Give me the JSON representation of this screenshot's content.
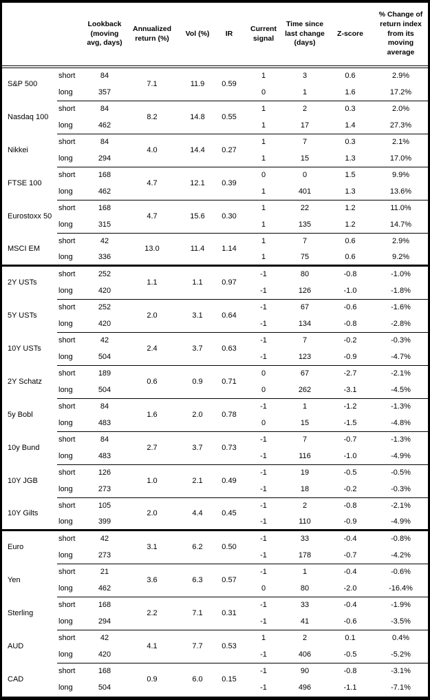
{
  "table": {
    "column_headers": {
      "asset": "",
      "side": "",
      "lookback": "Lookback (moving avg, days)",
      "annualized_return": "Annualized return (%)",
      "vol": "Vol (%)",
      "ir": "IR",
      "current_signal": "Current signal",
      "time_since": "Time since last change (days)",
      "z_score": "Z-score",
      "pct_change": "% Change of return index from its moving average"
    },
    "side_labels": [
      "short",
      "long"
    ],
    "sections": [
      {
        "assets": [
          {
            "name": "S&P 500",
            "annualized_return": "7.1",
            "vol": "11.9",
            "ir": "0.59",
            "rows": [
              {
                "side": "short",
                "lookback": "84",
                "signal": "1",
                "time_since": "3",
                "z_score": "0.6",
                "pct_change": "2.9%"
              },
              {
                "side": "long",
                "lookback": "357",
                "signal": "0",
                "time_since": "1",
                "z_score": "1.6",
                "pct_change": "17.2%"
              }
            ]
          },
          {
            "name": "Nasdaq 100",
            "annualized_return": "8.2",
            "vol": "14.8",
            "ir": "0.55",
            "rows": [
              {
                "side": "short",
                "lookback": "84",
                "signal": "1",
                "time_since": "2",
                "z_score": "0.3",
                "pct_change": "2.0%"
              },
              {
                "side": "long",
                "lookback": "462",
                "signal": "1",
                "time_since": "17",
                "z_score": "1.4",
                "pct_change": "27.3%"
              }
            ]
          },
          {
            "name": "Nikkei",
            "annualized_return": "4.0",
            "vol": "14.4",
            "ir": "0.27",
            "rows": [
              {
                "side": "short",
                "lookback": "84",
                "signal": "1",
                "time_since": "7",
                "z_score": "0.3",
                "pct_change": "2.1%"
              },
              {
                "side": "long",
                "lookback": "294",
                "signal": "1",
                "time_since": "15",
                "z_score": "1.3",
                "pct_change": "17.0%"
              }
            ]
          },
          {
            "name": "FTSE 100",
            "annualized_return": "4.7",
            "vol": "12.1",
            "ir": "0.39",
            "rows": [
              {
                "side": "short",
                "lookback": "168",
                "signal": "0",
                "time_since": "0",
                "z_score": "1.5",
                "pct_change": "9.9%"
              },
              {
                "side": "long",
                "lookback": "462",
                "signal": "1",
                "time_since": "401",
                "z_score": "1.3",
                "pct_change": "13.6%"
              }
            ]
          },
          {
            "name": "Eurostoxx 50",
            "annualized_return": "4.7",
            "vol": "15.6",
            "ir": "0.30",
            "rows": [
              {
                "side": "short",
                "lookback": "168",
                "signal": "1",
                "time_since": "22",
                "z_score": "1.2",
                "pct_change": "11.0%"
              },
              {
                "side": "long",
                "lookback": "315",
                "signal": "1",
                "time_since": "135",
                "z_score": "1.2",
                "pct_change": "14.7%"
              }
            ]
          },
          {
            "name": "MSCI EM",
            "annualized_return": "13.0",
            "vol": "11.4",
            "ir": "1.14",
            "rows": [
              {
                "side": "short",
                "lookback": "42",
                "signal": "1",
                "time_since": "7",
                "z_score": "0.6",
                "pct_change": "2.9%"
              },
              {
                "side": "long",
                "lookback": "336",
                "signal": "1",
                "time_since": "75",
                "z_score": "0.6",
                "pct_change": "9.2%"
              }
            ]
          }
        ]
      },
      {
        "assets": [
          {
            "name": "2Y USTs",
            "annualized_return": "1.1",
            "vol": "1.1",
            "ir": "0.97",
            "rows": [
              {
                "side": "short",
                "lookback": "252",
                "signal": "-1",
                "time_since": "80",
                "z_score": "-0.8",
                "pct_change": "-1.0%"
              },
              {
                "side": "long",
                "lookback": "420",
                "signal": "-1",
                "time_since": "126",
                "z_score": "-1.0",
                "pct_change": "-1.8%"
              }
            ]
          },
          {
            "name": "5Y USTs",
            "annualized_return": "2.0",
            "vol": "3.1",
            "ir": "0.64",
            "rows": [
              {
                "side": "short",
                "lookback": "252",
                "signal": "-1",
                "time_since": "67",
                "z_score": "-0.6",
                "pct_change": "-1.6%"
              },
              {
                "side": "long",
                "lookback": "420",
                "signal": "-1",
                "time_since": "134",
                "z_score": "-0.8",
                "pct_change": "-2.8%"
              }
            ]
          },
          {
            "name": "10Y USTs",
            "annualized_return": "2.4",
            "vol": "3.7",
            "ir": "0.63",
            "rows": [
              {
                "side": "short",
                "lookback": "42",
                "signal": "-1",
                "time_since": "7",
                "z_score": "-0.2",
                "pct_change": "-0.3%"
              },
              {
                "side": "long",
                "lookback": "504",
                "signal": "-1",
                "time_since": "123",
                "z_score": "-0.9",
                "pct_change": "-4.7%"
              }
            ]
          },
          {
            "name": "2Y Schatz",
            "annualized_return": "0.6",
            "vol": "0.9",
            "ir": "0.71",
            "rows": [
              {
                "side": "short",
                "lookback": "189",
                "signal": "0",
                "time_since": "67",
                "z_score": "-2.7",
                "pct_change": "-2.1%"
              },
              {
                "side": "long",
                "lookback": "504",
                "signal": "0",
                "time_since": "262",
                "z_score": "-3.1",
                "pct_change": "-4.5%"
              }
            ]
          },
          {
            "name": "5y Bobl",
            "annualized_return": "1.6",
            "vol": "2.0",
            "ir": "0.78",
            "rows": [
              {
                "side": "short",
                "lookback": "84",
                "signal": "-1",
                "time_since": "1",
                "z_score": "-1.2",
                "pct_change": "-1.3%"
              },
              {
                "side": "long",
                "lookback": "483",
                "signal": "0",
                "time_since": "15",
                "z_score": "-1.5",
                "pct_change": "-4.8%"
              }
            ]
          },
          {
            "name": "10y Bund",
            "annualized_return": "2.7",
            "vol": "3.7",
            "ir": "0.73",
            "rows": [
              {
                "side": "short",
                "lookback": "84",
                "signal": "-1",
                "time_since": "7",
                "z_score": "-0.7",
                "pct_change": "-1.3%"
              },
              {
                "side": "long",
                "lookback": "483",
                "signal": "-1",
                "time_since": "116",
                "z_score": "-1.0",
                "pct_change": "-4.9%"
              }
            ]
          },
          {
            "name": "10Y JGB",
            "annualized_return": "1.0",
            "vol": "2.1",
            "ir": "0.49",
            "rows": [
              {
                "side": "short",
                "lookback": "126",
                "signal": "-1",
                "time_since": "19",
                "z_score": "-0.5",
                "pct_change": "-0.5%"
              },
              {
                "side": "long",
                "lookback": "273",
                "signal": "-1",
                "time_since": "18",
                "z_score": "-0.2",
                "pct_change": "-0.3%"
              }
            ]
          },
          {
            "name": "10Y Gilts",
            "annualized_return": "2.0",
            "vol": "4.4",
            "ir": "0.45",
            "rows": [
              {
                "side": "short",
                "lookback": "105",
                "signal": "-1",
                "time_since": "2",
                "z_score": "-0.8",
                "pct_change": "-2.1%"
              },
              {
                "side": "long",
                "lookback": "399",
                "signal": "-1",
                "time_since": "110",
                "z_score": "-0.9",
                "pct_change": "-4.9%"
              }
            ]
          }
        ]
      },
      {
        "assets": [
          {
            "name": "Euro",
            "annualized_return": "3.1",
            "vol": "6.2",
            "ir": "0.50",
            "rows": [
              {
                "side": "short",
                "lookback": "42",
                "signal": "-1",
                "time_since": "33",
                "z_score": "-0.4",
                "pct_change": "-0.8%"
              },
              {
                "side": "long",
                "lookback": "273",
                "signal": "-1",
                "time_since": "178",
                "z_score": "-0.7",
                "pct_change": "-4.2%"
              }
            ]
          },
          {
            "name": "Yen",
            "annualized_return": "3.6",
            "vol": "6.3",
            "ir": "0.57",
            "rows": [
              {
                "side": "short",
                "lookback": "21",
                "signal": "-1",
                "time_since": "1",
                "z_score": "-0.4",
                "pct_change": "-0.6%"
              },
              {
                "side": "long",
                "lookback": "462",
                "signal": "0",
                "time_since": "80",
                "z_score": "-2.0",
                "pct_change": "-16.4%"
              }
            ]
          },
          {
            "name": "Sterling",
            "annualized_return": "2.2",
            "vol": "7.1",
            "ir": "0.31",
            "rows": [
              {
                "side": "short",
                "lookback": "168",
                "signal": "-1",
                "time_since": "33",
                "z_score": "-0.4",
                "pct_change": "-1.9%"
              },
              {
                "side": "long",
                "lookback": "294",
                "signal": "-1",
                "time_since": "41",
                "z_score": "-0.6",
                "pct_change": "-3.5%"
              }
            ]
          },
          {
            "name": "AUD",
            "annualized_return": "4.1",
            "vol": "7.7",
            "ir": "0.53",
            "rows": [
              {
                "side": "short",
                "lookback": "42",
                "signal": "1",
                "time_since": "2",
                "z_score": "0.1",
                "pct_change": "0.4%"
              },
              {
                "side": "long",
                "lookback": "420",
                "signal": "-1",
                "time_since": "406",
                "z_score": "-0.5",
                "pct_change": "-5.2%"
              }
            ]
          },
          {
            "name": "CAD",
            "annualized_return": "0.9",
            "vol": "6.0",
            "ir": "0.15",
            "rows": [
              {
                "side": "short",
                "lookback": "168",
                "signal": "-1",
                "time_since": "90",
                "z_score": "-0.8",
                "pct_change": "-3.1%"
              },
              {
                "side": "long",
                "lookback": "504",
                "signal": "-1",
                "time_since": "496",
                "z_score": "-1.1",
                "pct_change": "-7.1%"
              }
            ]
          }
        ]
      }
    ]
  }
}
